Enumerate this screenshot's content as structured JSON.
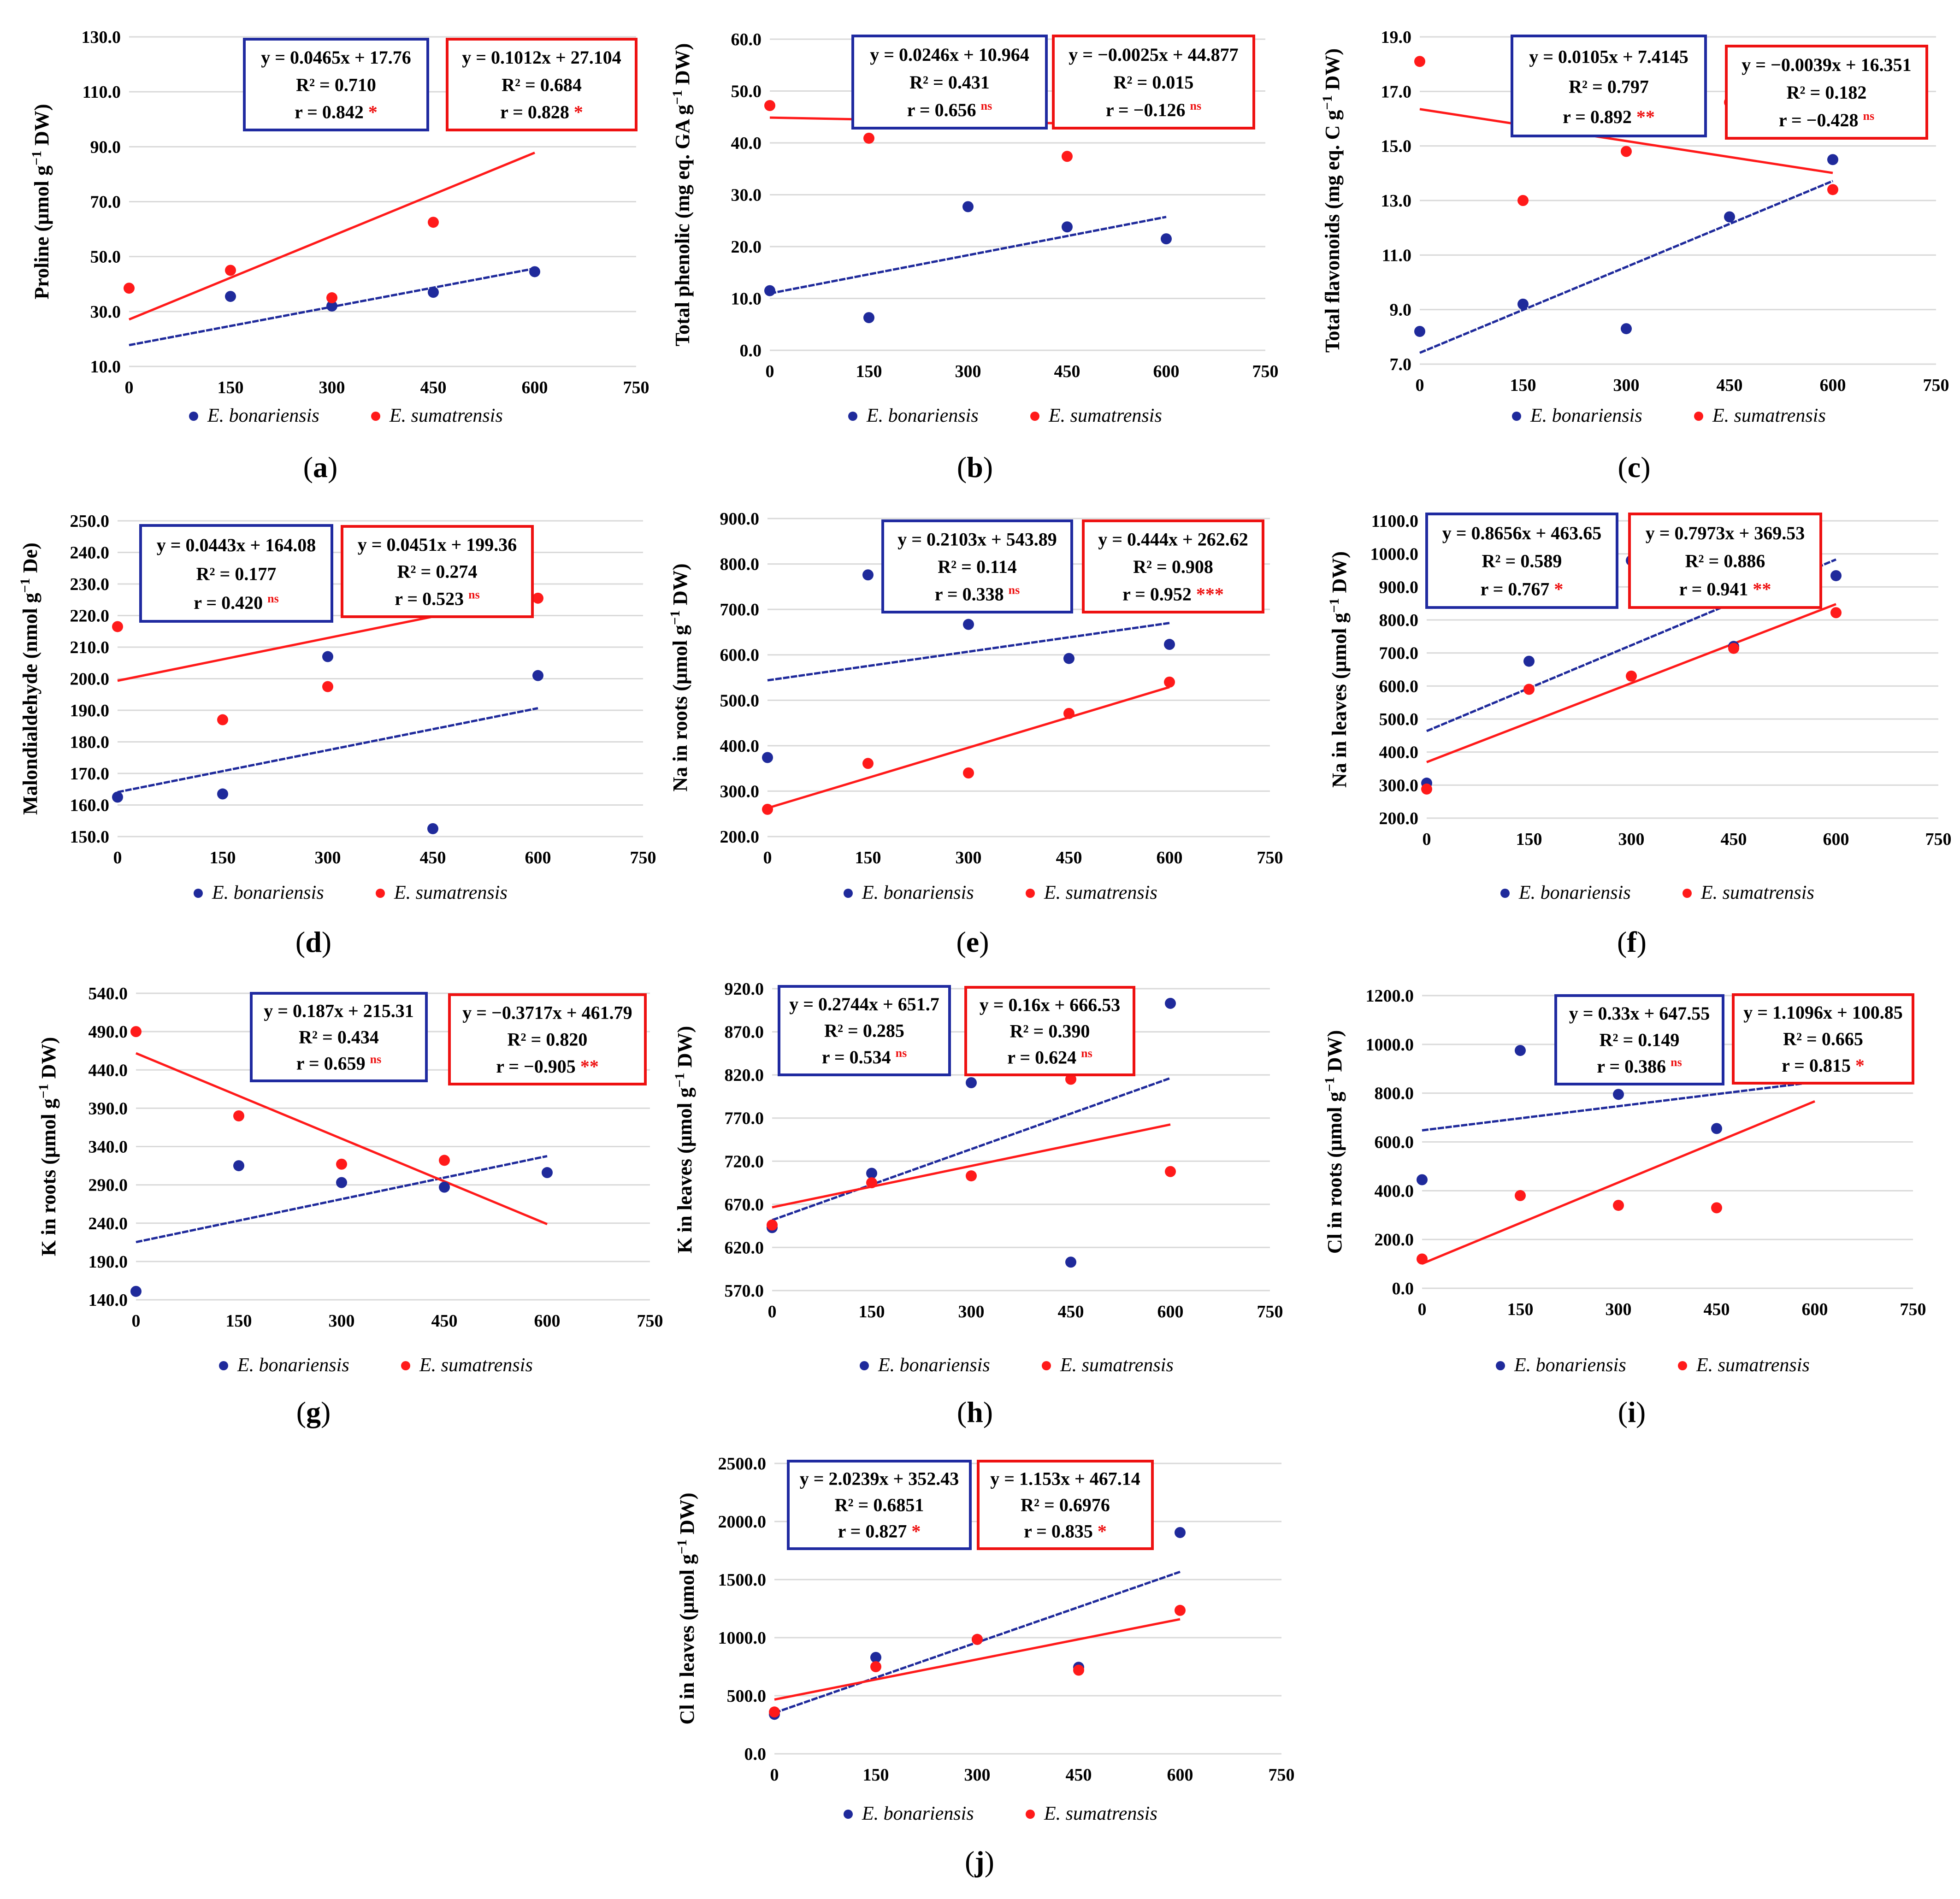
{
  "colors": {
    "bonariensis": "#1f2a9b",
    "sumatrensis": "#ff1a1a",
    "grid": "#d9d9d9",
    "text": "#000000",
    "box_blue": "#1f2aa0",
    "box_red": "#ee1111"
  },
  "legend": {
    "series_a": "E. bonariensis",
    "series_b": "E. sumatrensis"
  },
  "chart_data": [
    {
      "panel": "(a)",
      "type": "scatter",
      "ylabel_prefix": "Proline (μmol g",
      "ylabel_sup": "−1",
      "ylabel_suffix": " DW)",
      "xlim": [
        0,
        750
      ],
      "ylim": [
        10,
        130
      ],
      "x_ticks": [
        "0",
        "150",
        "300",
        "450",
        "600",
        "750"
      ],
      "y_ticks": [
        "10.0",
        "30.0",
        "50.0",
        "70.0",
        "90.0",
        "110.0",
        "130.0"
      ],
      "x": [
        0,
        150,
        300,
        450,
        600
      ],
      "series": [
        {
          "name": "E. bonariensis",
          "values": [
            null,
            35.5,
            32,
            37,
            44.5
          ],
          "fit": {
            "slope": 0.0465,
            "intercept": 17.76
          },
          "box": {
            "eq": "y = 0.0465x + 17.76",
            "r2": "R² = 0.710",
            "r": "r = 0.842",
            "sig": "*"
          }
        },
        {
          "name": "E. sumatrensis",
          "values": [
            38.5,
            45,
            35,
            62.5,
            105.5
          ],
          "fit": {
            "slope": 0.1012,
            "intercept": 27.104
          },
          "box": {
            "eq": "y = 0.1012x + 27.104",
            "r2": "R² = 0.684",
            "r": "r = 0.828",
            "sig": "*"
          }
        }
      ]
    },
    {
      "panel": "(b)",
      "type": "scatter",
      "ylabel_prefix": "Total phenolic (mg eq. GA g",
      "ylabel_sup": "−1",
      "ylabel_suffix": " DW)",
      "xlim": [
        0,
        750
      ],
      "ylim": [
        0,
        60
      ],
      "x_ticks": [
        "0",
        "150",
        "300",
        "450",
        "600",
        "750"
      ],
      "y_ticks": [
        "0.0",
        "10.0",
        "20.0",
        "30.0",
        "40.0",
        "50.0",
        "60.0"
      ],
      "x": [
        0,
        150,
        300,
        450,
        600
      ],
      "series": [
        {
          "name": "E. bonariensis",
          "values": [
            11.5,
            6.3,
            27.7,
            23.8,
            21.5
          ],
          "fit": {
            "slope": 0.0246,
            "intercept": 10.964
          },
          "box": {
            "eq": "y = 0.0246x + 10.964",
            "r2": "R² = 0.431",
            "r": "r = 0.656",
            "sig": "ns"
          }
        },
        {
          "name": "E. sumatrensis",
          "values": [
            47.2,
            40.9,
            47.8,
            37.4,
            47.0
          ],
          "fit": {
            "slope": -0.0025,
            "intercept": 44.877
          },
          "box": {
            "eq": "y = −0.0025x + 44.877",
            "r2": "R² = 0.015",
            "r": "r = −0.126",
            "sig": "ns"
          }
        }
      ]
    },
    {
      "panel": "(c)",
      "type": "scatter",
      "ylabel_prefix": "Total flavonoids (mg eq. C g",
      "ylabel_sup": "−1",
      "ylabel_suffix": " DW)",
      "xlim": [
        0,
        750
      ],
      "ylim": [
        7,
        19
      ],
      "x_ticks": [
        "0",
        "150",
        "300",
        "450",
        "600",
        "750"
      ],
      "y_ticks": [
        "7.0",
        "9.0",
        "11.0",
        "13.0",
        "15.0",
        "17.0",
        "19.0"
      ],
      "x": [
        0,
        150,
        300,
        450,
        600
      ],
      "series": [
        {
          "name": "E. bonariensis",
          "values": [
            8.2,
            9.2,
            8.3,
            12.4,
            14.5
          ],
          "fit": {
            "slope": 0.0105,
            "intercept": 7.4145
          },
          "box": {
            "eq": "y = 0.0105x + 7.4145",
            "r2": "R² = 0.797",
            "r": "r = 0.892",
            "sig": "**"
          }
        },
        {
          "name": "E. sumatrensis",
          "values": [
            18.1,
            13.0,
            14.8,
            16.6,
            13.4
          ],
          "fit": {
            "slope": -0.0039,
            "intercept": 16.351
          },
          "box": {
            "eq": "y = −0.0039x + 16.351",
            "r2": "R² = 0.182",
            "r": "r = −0.428",
            "sig": "ns"
          }
        }
      ]
    },
    {
      "panel": "(d)",
      "type": "scatter",
      "ylabel_prefix": "Malondialdehyde (nmol g",
      "ylabel_sup": "−1",
      "ylabel_suffix": " De)",
      "xlim": [
        0,
        750
      ],
      "ylim": [
        150,
        250
      ],
      "x_ticks": [
        "0",
        "150",
        "300",
        "450",
        "600",
        "750"
      ],
      "y_ticks": [
        "150.0",
        "160.0",
        "170.0",
        "180.0",
        "190.0",
        "200.0",
        "210.0",
        "220.0",
        "230.0",
        "240.0",
        "250.0"
      ],
      "x": [
        0,
        150,
        300,
        450,
        600
      ],
      "series": [
        {
          "name": "E. bonariensis",
          "values": [
            162.5,
            163.5,
            207,
            152.5,
            201
          ],
          "fit": {
            "slope": 0.0443,
            "intercept": 164.08
          },
          "box": {
            "eq": "y = 0.0443x + 164.08",
            "r2": "R² = 0.177",
            "r": "r = 0.420",
            "sig": "ns"
          }
        },
        {
          "name": "E. sumatrensis",
          "values": [
            216.5,
            187,
            197.5,
            237.5,
            225.5
          ],
          "fit": {
            "slope": 0.0451,
            "intercept": 199.36
          },
          "box": {
            "eq": "y = 0.0451x + 199.36",
            "r2": "R² = 0.274",
            "r": "r = 0.523",
            "sig": "ns"
          }
        }
      ]
    },
    {
      "panel": "(e)",
      "type": "scatter",
      "ylabel_prefix": "Na in roots (μmol g",
      "ylabel_sup": "−1",
      "ylabel_suffix": " DW)",
      "xlim": [
        0,
        750
      ],
      "ylim": [
        200,
        900
      ],
      "x_ticks": [
        "0",
        "150",
        "300",
        "450",
        "600",
        "750"
      ],
      "y_ticks": [
        "200.0",
        "300.0",
        "400.0",
        "500.0",
        "600.0",
        "700.0",
        "800.0",
        "900.0"
      ],
      "x": [
        0,
        150,
        300,
        450,
        600
      ],
      "series": [
        {
          "name": "E. bonariensis",
          "values": [
            374,
            776,
            667,
            592,
            623
          ],
          "fit": {
            "slope": 0.2103,
            "intercept": 543.89
          },
          "box": {
            "eq": "y = 0.2103x + 543.89",
            "r2": "R² = 0.114",
            "r": "r = 0.338",
            "sig": "ns"
          }
        },
        {
          "name": "E. sumatrensis",
          "values": [
            260,
            361,
            340,
            471,
            540
          ],
          "fit": {
            "slope": 0.444,
            "intercept": 262.62
          },
          "box": {
            "eq": "y = 0.444x + 262.62",
            "r2": "R² = 0.908",
            "r": "r = 0.952",
            "sig": "***"
          }
        }
      ]
    },
    {
      "panel": "(f)",
      "type": "scatter",
      "ylabel_prefix": "Na in leaves (μmol g",
      "ylabel_sup": "−1",
      "ylabel_suffix": " DW)",
      "xlim": [
        0,
        750
      ],
      "ylim": [
        200,
        1100
      ],
      "x_ticks": [
        "0",
        "150",
        "300",
        "450",
        "600",
        "750"
      ],
      "y_ticks": [
        "200.0",
        "300.0",
        "400.0",
        "500.0",
        "600.0",
        "700.0",
        "800.0",
        "900.0",
        "1000.0",
        "1100.0"
      ],
      "x": [
        0,
        150,
        300,
        450,
        600
      ],
      "series": [
        {
          "name": "E. bonariensis",
          "values": [
            306,
            675,
            980,
            720,
            934
          ],
          "fit": {
            "slope": 0.8656,
            "intercept": 463.65
          },
          "box": {
            "eq": "y = 0.8656x + 463.65",
            "r2": "R² = 0.589",
            "r": "r = 0.767",
            "sig": "*"
          }
        },
        {
          "name": "E. sumatrensis",
          "values": [
            288,
            590,
            630,
            714,
            822
          ],
          "fit": {
            "slope": 0.7973,
            "intercept": 369.53
          },
          "box": {
            "eq": "y = 0.7973x + 369.53",
            "r2": "R² = 0.886",
            "r": "r = 0.941",
            "sig": "**"
          }
        }
      ]
    },
    {
      "panel": "(g)",
      "type": "scatter",
      "ylabel_prefix": "K in roots (μmol g",
      "ylabel_sup": "−1",
      "ylabel_suffix": " DW)",
      "xlim": [
        0,
        750
      ],
      "ylim": [
        140,
        540
      ],
      "x_ticks": [
        "0",
        "150",
        "300",
        "450",
        "600",
        "750"
      ],
      "y_ticks": [
        "140.0",
        "190.0",
        "240.0",
        "290.0",
        "340.0",
        "390.0",
        "440.0",
        "490.0",
        "540.0"
      ],
      "x": [
        0,
        150,
        300,
        450,
        600
      ],
      "series": [
        {
          "name": "E. bonariensis",
          "values": [
            151,
            315,
            293,
            287,
            306
          ],
          "fit": {
            "slope": 0.187,
            "intercept": 215.31
          },
          "box": {
            "eq": "y = 0.187x + 215.31",
            "r2": "R² = 0.434",
            "r": "r = 0.659",
            "sig": "ns"
          }
        },
        {
          "name": "E. sumatrensis",
          "values": [
            490,
            380,
            317,
            322,
            null
          ],
          "fit": {
            "slope": -0.3717,
            "intercept": 461.79
          },
          "box": {
            "eq": "y = −0.3717x + 461.79",
            "r2": "R² = 0.820",
            "r": "r = −0.905",
            "sig": "**"
          }
        }
      ]
    },
    {
      "panel": "(h)",
      "type": "scatter",
      "ylabel_prefix": "K in leaves (μmol g",
      "ylabel_sup": "−1",
      "ylabel_suffix": " DW)",
      "xlim": [
        0,
        750
      ],
      "ylim": [
        570,
        920
      ],
      "x_ticks": [
        "0",
        "150",
        "300",
        "450",
        "600",
        "750"
      ],
      "y_ticks": [
        "570.0",
        "620.0",
        "670.0",
        "720.0",
        "770.0",
        "820.0",
        "870.0",
        "920.0"
      ],
      "x": [
        0,
        150,
        300,
        450,
        600
      ],
      "series": [
        {
          "name": "E. bonariensis",
          "values": [
            643,
            706,
            811,
            603,
            903
          ],
          "fit": {
            "slope": 0.2744,
            "intercept": 651.7
          },
          "box": {
            "eq": "y = 0.2744x + 651.7",
            "r2": "R² = 0.285",
            "r": "r = 0.534",
            "sig": "ns"
          }
        },
        {
          "name": "E. sumatrensis",
          "values": [
            646,
            695,
            703,
            815,
            708
          ],
          "fit": {
            "slope": 0.16,
            "intercept": 666.53
          },
          "box": {
            "eq": "y = 0.16x + 666.53",
            "r2": "R² = 0.390",
            "r": "r = 0.624",
            "sig": "ns"
          }
        }
      ]
    },
    {
      "panel": "(i)",
      "type": "scatter",
      "ylabel_prefix": "Cl in roots (μmol g",
      "ylabel_sup": "−1",
      "ylabel_suffix": " DW)",
      "xlim": [
        0,
        750
      ],
      "ylim": [
        0,
        1200
      ],
      "x_ticks": [
        "0",
        "150",
        "300",
        "450",
        "600",
        "750"
      ],
      "y_ticks": [
        "0.0",
        "200.0",
        "400.0",
        "600.0",
        "800.0",
        "1000.0",
        "1200.0"
      ],
      "x": [
        0,
        150,
        300,
        450,
        600
      ],
      "series": [
        {
          "name": "E. bonariensis",
          "values": [
            445,
            975,
            795,
            655,
            860
          ],
          "fit": {
            "slope": 0.33,
            "intercept": 647.55
          },
          "box": {
            "eq": "y = 0.33x + 647.55",
            "r2": "R² = 0.149",
            "r": "r = 0.386",
            "sig": "ns"
          }
        },
        {
          "name": "E. sumatrensis",
          "values": [
            120,
            380,
            340,
            330,
            980
          ],
          "fit": {
            "slope": 1.1096,
            "intercept": 100.85
          },
          "box": {
            "eq": "y = 1.1096x + 100.85",
            "r2": "R² = 0.665",
            "r": "r = 0.815",
            "sig": "*"
          }
        }
      ]
    },
    {
      "panel": "(j)",
      "type": "scatter",
      "ylabel_prefix": "Cl in leaves (μmol g",
      "ylabel_sup": "−1",
      "ylabel_suffix": " DW)",
      "xlim": [
        0,
        750
      ],
      "ylim": [
        0,
        2500
      ],
      "x_ticks": [
        "0",
        "150",
        "300",
        "450",
        "600",
        "750"
      ],
      "y_ticks": [
        "0.0",
        "500.0",
        "1000.0",
        "1500.0",
        "2000.0",
        "2500.0"
      ],
      "x": [
        0,
        150,
        300,
        450,
        600
      ],
      "series": [
        {
          "name": "E. bonariensis",
          "values": [
            340,
            830,
            985,
            745,
            1905
          ],
          "fit": {
            "slope": 2.0239,
            "intercept": 352.43
          },
          "box": {
            "eq": "y = 2.0239x + 352.43",
            "r2": "R² = 0.6851",
            "r": "r =  0.827",
            "sig": "*"
          }
        },
        {
          "name": "E. sumatrensis",
          "values": [
            360,
            750,
            985,
            720,
            1235
          ],
          "fit": {
            "slope": 1.153,
            "intercept": 467.14
          },
          "box": {
            "eq": "y = 1.153x + 467.14",
            "r2": "R² = 0.6976",
            "r": "r = 0.835",
            "sig": "*"
          }
        }
      ]
    }
  ]
}
